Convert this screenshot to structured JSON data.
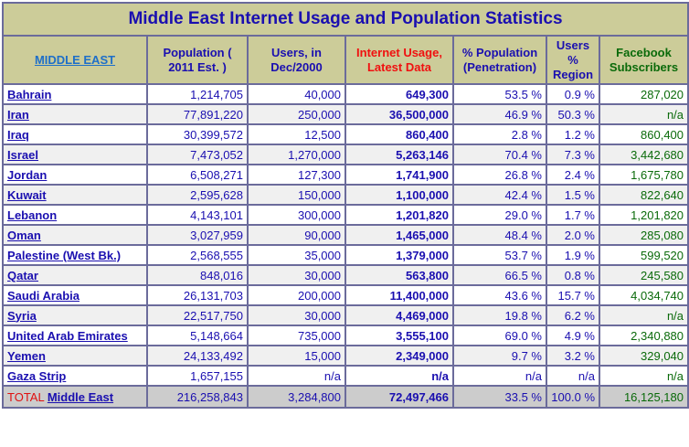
{
  "title": "Middle East Internet Usage and Population Statistics",
  "headers": [
    "MIDDLE EAST",
    "Population ( 2011 Est. )",
    "Users, in Dec/2000",
    "Internet Usage, Latest Data",
    "% Population (Penetration)",
    "Users % Region",
    "Facebook Subscribers"
  ],
  "colors": {
    "header_bg": "#cccc99",
    "text": "#1a0fb0",
    "red": "#f01010",
    "green": "#0a6a0a",
    "border": "#6b6b9b"
  },
  "rows": [
    [
      "Bahrain",
      "1,214,705",
      "40,000",
      "649,300",
      "53.5 %",
      "0.9 %",
      "287,020"
    ],
    [
      "Iran",
      "77,891,220",
      "250,000",
      "36,500,000",
      "46.9 %",
      "50.3 %",
      "n/a"
    ],
    [
      "Iraq",
      "30,399,572",
      "12,500",
      "860,400",
      "2.8 %",
      "1.2 %",
      "860,400"
    ],
    [
      "Israel",
      "7,473,052",
      "1,270,000",
      "5,263,146",
      "70.4 %",
      "7.3 %",
      "3,442,680"
    ],
    [
      "Jordan",
      "6,508,271",
      "127,300",
      "1,741,900",
      "26.8 %",
      "2.4 %",
      "1,675,780"
    ],
    [
      "Kuwait",
      "2,595,628",
      "150,000",
      "1,100,000",
      "42.4 %",
      "1.5 %",
      "822,640"
    ],
    [
      "Lebanon",
      "4,143,101",
      "300,000",
      "1,201,820",
      "29.0 %",
      "1.7 %",
      "1,201,820"
    ],
    [
      "Oman",
      "3,027,959",
      "90,000",
      "1,465,000",
      "48.4 %",
      "2.0 %",
      "285,080"
    ],
    [
      "Palestine (West Bk.)",
      "2,568,555",
      "35,000",
      "1,379,000",
      "53.7 %",
      "1.9 %",
      "599,520"
    ],
    [
      "Qatar",
      "848,016",
      "30,000",
      "563,800",
      "66.5 %",
      "0.8 %",
      "245,580"
    ],
    [
      "Saudi Arabia",
      "26,131,703",
      "200,000",
      "11,400,000",
      "43.6 %",
      "15.7 %",
      "4,034,740"
    ],
    [
      "Syria",
      "22,517,750",
      "30,000",
      "4,469,000",
      "19.8 %",
      "6.2 %",
      "n/a"
    ],
    [
      "United Arab Emirates",
      "5,148,664",
      "735,000",
      "3,555,100",
      "69.0 %",
      "4.9 %",
      "2,340,880"
    ],
    [
      "Yemen",
      "24,133,492",
      "15,000",
      "2,349,000",
      "9.7 %",
      "3.2 %",
      "329,040"
    ],
    [
      "Gaza Strip",
      "1,657,155",
      "n/a",
      "n/a",
      "n/a",
      "n/a",
      "n/a"
    ]
  ],
  "total": {
    "label": "TOTAL",
    "region": "Middle East",
    "values": [
      "216,258,843",
      "3,284,800",
      "72,497,466",
      "33.5 %",
      "100.0 %",
      "16,125,180"
    ]
  }
}
